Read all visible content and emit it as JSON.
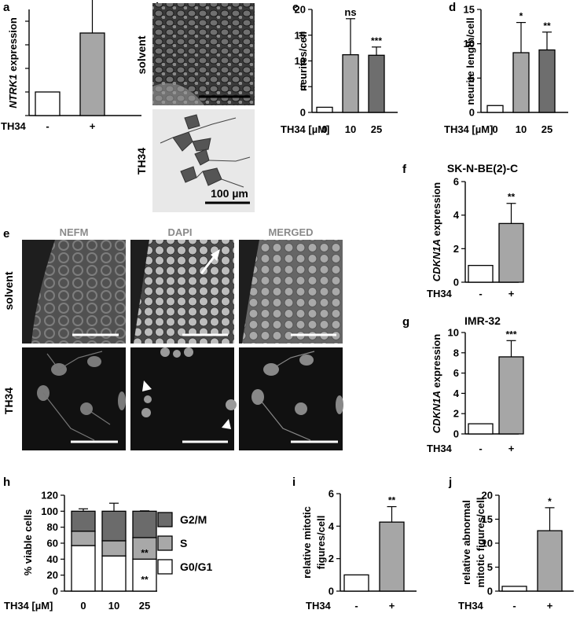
{
  "panels": {
    "a": {
      "letter": "a"
    },
    "b": {
      "letter": "b",
      "row_solvent": "solvent",
      "row_th34": "TH34",
      "scale_label": "100 µm"
    },
    "c": {
      "letter": "c"
    },
    "d": {
      "letter": "d"
    },
    "e": {
      "letter": "e",
      "col_labels": [
        "NEFM",
        "DAPI",
        "MERGED"
      ],
      "row_labels": [
        "solvent",
        "TH34"
      ]
    },
    "f": {
      "letter": "f",
      "title": "SK-N-BE(2)-C"
    },
    "g": {
      "letter": "g",
      "title": "IMR-32"
    },
    "h": {
      "letter": "h",
      "legend": [
        "G2/M",
        "S",
        "G0/G1"
      ]
    },
    "i": {
      "letter": "i"
    },
    "j": {
      "letter": "j"
    }
  },
  "colors": {
    "white_bar": "#ffffff",
    "light_grey": "#a6a6a6",
    "mid_grey": "#9a9a9a",
    "dark_grey": "#6e6e6e",
    "g2m": "#6b6b6b",
    "s": "#a8a8a8",
    "g0g1": "#ffffff"
  },
  "chart_data": [
    {
      "id": "a",
      "type": "bar",
      "ylabel": "NTRK1 expression",
      "ylabel_italic": "NTRK1",
      "ylabel_rest": " expression",
      "treat_label": "TH34",
      "categories": [
        "-",
        "+"
      ],
      "values": [
        1,
        3.5
      ],
      "errors": [
        0,
        1.55
      ],
      "sig": [
        "",
        "*"
      ],
      "ylim": [
        0,
        4.5
      ],
      "yticks": [],
      "bar_colors": [
        "#ffffff",
        "#a6a6a6"
      ]
    },
    {
      "id": "c",
      "type": "bar",
      "ylabel": "neurites/cell",
      "treat_label": "TH34 [µM]",
      "categories": [
        "0",
        "10",
        "25"
      ],
      "values": [
        1,
        11.2,
        11.1
      ],
      "errors": [
        0,
        7,
        1.6
      ],
      "sig": [
        "",
        "ns",
        "***"
      ],
      "ylim": [
        0,
        20
      ],
      "yticks": [
        "0",
        "5",
        "10",
        "15",
        "20"
      ],
      "bar_colors": [
        "#ffffff",
        "#a6a6a6",
        "#6e6e6e"
      ]
    },
    {
      "id": "d",
      "type": "bar",
      "ylabel": "neurite length/cell",
      "treat_label": "TH34 [µM]",
      "categories": [
        "0",
        "10",
        "25"
      ],
      "values": [
        1,
        8.7,
        9.1
      ],
      "errors": [
        0,
        4.4,
        2.6
      ],
      "sig": [
        "",
        "*",
        "**"
      ],
      "ylim": [
        0,
        15
      ],
      "yticks": [
        "0",
        "5",
        "10",
        "15"
      ],
      "bar_colors": [
        "#ffffff",
        "#a6a6a6",
        "#6e6e6e"
      ]
    },
    {
      "id": "f",
      "type": "bar",
      "ylabel": "CDKN1A expression",
      "ylabel_italic": "CDKN1A",
      "ylabel_rest": " expression",
      "treat_label": "TH34",
      "categories": [
        "-",
        "+"
      ],
      "values": [
        1,
        3.5
      ],
      "errors": [
        0,
        1.2
      ],
      "sig": [
        "",
        "**"
      ],
      "ylim": [
        0,
        6
      ],
      "yticks": [
        "0",
        "2",
        "4",
        "6"
      ],
      "bar_colors": [
        "#ffffff",
        "#a6a6a6"
      ]
    },
    {
      "id": "g",
      "type": "bar",
      "ylabel": "CDKN1A expression",
      "ylabel_italic": "CDKN1A",
      "ylabel_rest": " expression",
      "treat_label": "TH34",
      "categories": [
        "-",
        "+"
      ],
      "values": [
        1,
        7.6
      ],
      "errors": [
        0,
        1.6
      ],
      "sig": [
        "",
        "***"
      ],
      "ylim": [
        0,
        10
      ],
      "yticks": [
        "0",
        "2",
        "4",
        "6",
        "8",
        "10"
      ],
      "bar_colors": [
        "#ffffff",
        "#a6a6a6"
      ]
    },
    {
      "id": "h",
      "type": "bar",
      "stacked": true,
      "ylabel": "% viable cells",
      "treat_label": "TH34 [µM]",
      "categories": [
        "0",
        "10",
        "25"
      ],
      "ylim": [
        0,
        120
      ],
      "yticks": [
        "0",
        "20",
        "40",
        "60",
        "80",
        "100",
        "120"
      ],
      "series": [
        {
          "name": "G0/G1",
          "values": [
            57,
            44,
            40
          ],
          "errors": [
            2,
            9,
            2
          ],
          "color": "#ffffff",
          "sig": [
            "",
            "",
            "**"
          ]
        },
        {
          "name": "S",
          "values": [
            18,
            19,
            27
          ],
          "errors": [
            1,
            2,
            1
          ],
          "color": "#a8a8a8",
          "sig": [
            "",
            "",
            "**"
          ]
        },
        {
          "name": "G2/M",
          "values": [
            25,
            37,
            33
          ],
          "errors": [
            3,
            10,
            0.5
          ],
          "color": "#6b6b6b",
          "sig": [
            "",
            "",
            ""
          ]
        }
      ]
    },
    {
      "id": "i",
      "type": "bar",
      "ylabel_lines": [
        "relative mitotic",
        "figures/cell"
      ],
      "treat_label": "TH34",
      "categories": [
        "-",
        "+"
      ],
      "values": [
        1,
        4.25
      ],
      "errors": [
        0,
        0.95
      ],
      "sig": [
        "",
        "**"
      ],
      "ylim": [
        0,
        6
      ],
      "yticks": [
        "0",
        "2",
        "4",
        "6"
      ],
      "bar_colors": [
        "#ffffff",
        "#a6a6a6"
      ]
    },
    {
      "id": "j",
      "type": "bar",
      "ylabel_lines": [
        "relative abnormal",
        "mitotic figures/cell"
      ],
      "treat_label": "TH34",
      "categories": [
        "-",
        "+"
      ],
      "values": [
        1,
        12.6
      ],
      "errors": [
        0,
        4.8
      ],
      "sig": [
        "",
        "*"
      ],
      "ylim": [
        0,
        20
      ],
      "yticks": [
        "0",
        "5",
        "10",
        "15",
        "20"
      ],
      "bar_colors": [
        "#ffffff",
        "#a6a6a6"
      ]
    }
  ]
}
